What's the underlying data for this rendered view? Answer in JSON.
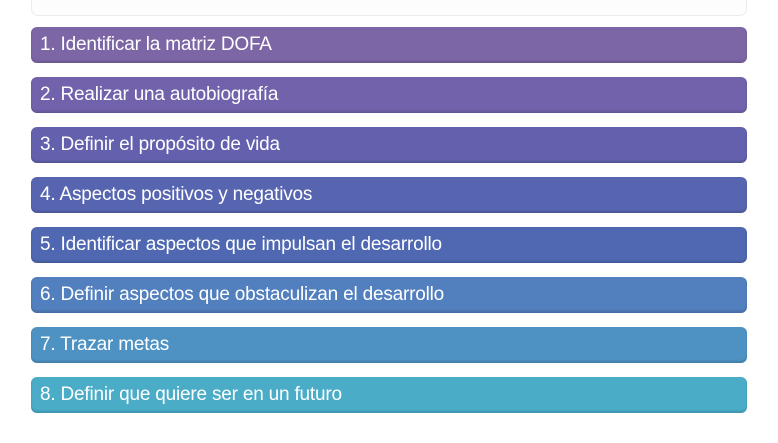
{
  "diagram": {
    "type": "vertical-step-list",
    "text_color": "#ffffff",
    "background_color": "#ffffff",
    "items": [
      {
        "label": "1. Identificar la matriz DOFA",
        "color": "#7C66A5"
      },
      {
        "label": "2. Realizar una autobiografía",
        "color": "#7262AC"
      },
      {
        "label": "3. Definir el propósito de vida",
        "color": "#6361AD"
      },
      {
        "label": "4. Aspectos positivos y negativos",
        "color": "#5765B1"
      },
      {
        "label": "5. Identificar aspectos que impulsan el desarrollo",
        "color": "#4F68B1"
      },
      {
        "label": "6. Definir aspectos que obstaculizan el desarrollo",
        "color": "#527FBE"
      },
      {
        "label": "7. Trazar metas",
        "color": "#4D92C3"
      },
      {
        "label": "8. Definir que quiere ser en un futuro",
        "color": "#4AACC7"
      }
    ]
  }
}
